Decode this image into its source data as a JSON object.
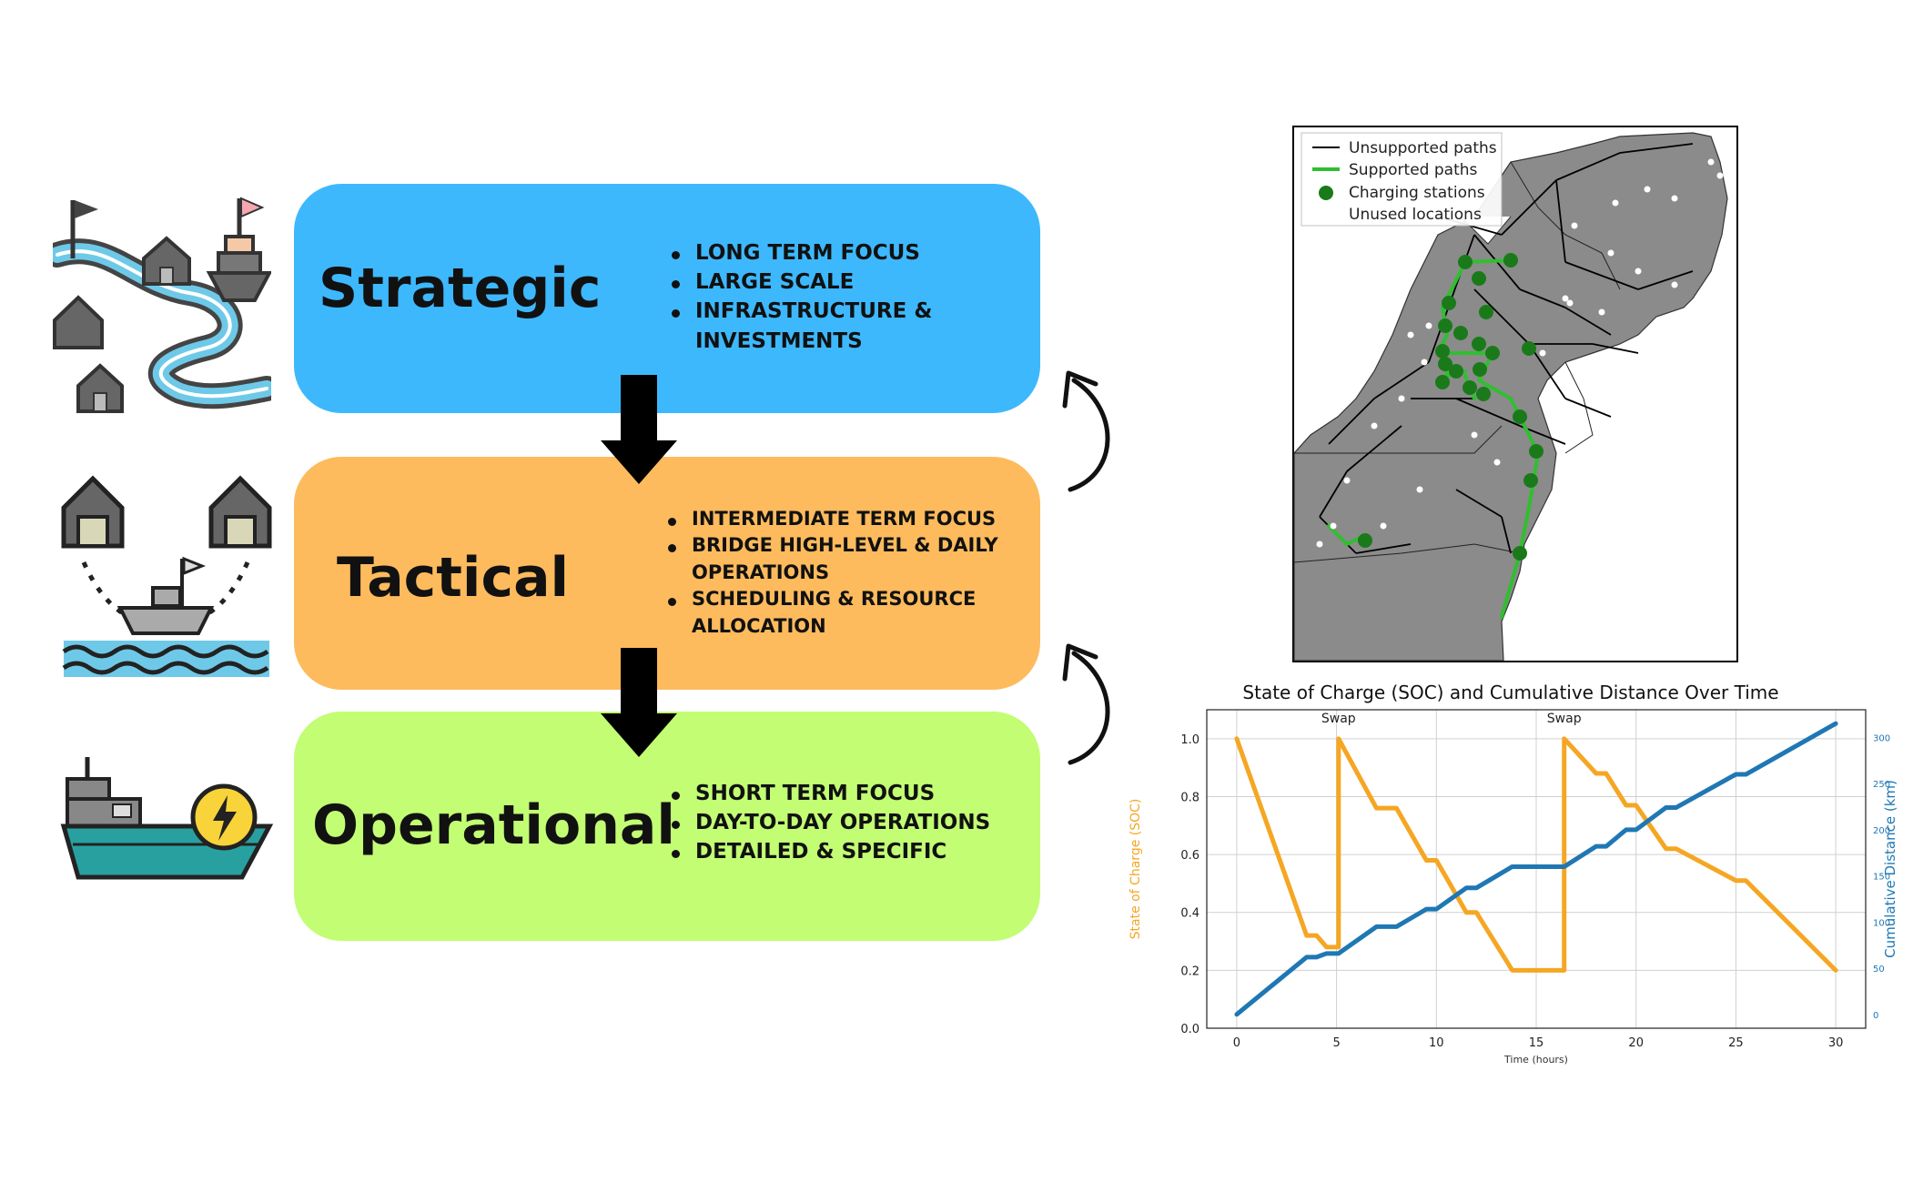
{
  "levels": [
    {
      "title": "Strategic",
      "color": "#3db8fd",
      "bullets": [
        "LONG TERM FOCUS",
        "LARGE SCALE",
        "INFRASTRUCTURE &",
        "INVESTMENTS"
      ],
      "icon": "river-town-ship-icon"
    },
    {
      "title": "Tactical",
      "color": "#fdbb5d",
      "bullets": [
        "INTERMEDIATE TERM FOCUS",
        "BRIDGE HIGH-LEVEL & DAILY",
        "OPERATIONS",
        "SCHEDULING & RESOURCE",
        "ALLOCATION"
      ],
      "icon": "ship-between-ports-icon"
    },
    {
      "title": "Operational",
      "color": "#c2fd74",
      "bullets": [
        "SHORT TERM FOCUS",
        "DAY-TO-DAY OPERATIONS",
        "DETAILED & SPECIFIC"
      ],
      "icon": "electric-ship-icon"
    }
  ],
  "map": {
    "legend": [
      "Unsupported paths",
      "Supported paths",
      "Charging stations",
      "Unused locations"
    ],
    "colors": {
      "land": "#8b8b8b",
      "supported": "#2fbf2f",
      "station": "#1a7a1a",
      "unused": "#ffffff",
      "unsupported": "#000000"
    }
  },
  "chart_data": {
    "type": "line",
    "title": "State of Charge (SOC) and Cumulative Distance Over Time",
    "xlabel": "Time (hours)",
    "ylabel": "State of Charge (SOC)",
    "y2label": "Cumulative Distance (km)",
    "xlim": [
      -1.5,
      31.5
    ],
    "ylim": [
      0.0,
      1.1
    ],
    "y2lim": [
      -15,
      330
    ],
    "xticks": [
      0,
      5,
      10,
      15,
      20,
      25,
      30
    ],
    "yticks": [
      0.0,
      0.2,
      0.4,
      0.6,
      0.8,
      1.0
    ],
    "y2ticks": [
      0,
      50,
      100,
      150,
      200,
      250,
      300
    ],
    "grid": true,
    "annotations": [
      {
        "text": "Swap",
        "x": 5.1
      },
      {
        "text": "Swap",
        "x": 16.4
      }
    ],
    "series": [
      {
        "name": "State of Charge (SOC)",
        "axis": "left",
        "color": "#f5a623",
        "x": [
          0,
          3.5,
          4,
          4.5,
          5.1,
          5.1,
          7,
          8,
          9.5,
          10,
          11.5,
          12,
          13.8,
          16.4,
          16.4,
          18,
          18.5,
          19.5,
          20,
          21.5,
          22,
          25,
          25.5,
          30
        ],
        "y": [
          1.0,
          0.32,
          0.32,
          0.28,
          0.28,
          1.0,
          0.76,
          0.76,
          0.58,
          0.58,
          0.4,
          0.4,
          0.2,
          0.2,
          1.0,
          0.88,
          0.88,
          0.77,
          0.77,
          0.62,
          0.62,
          0.51,
          0.51,
          0.2
        ]
      },
      {
        "name": "Cumulative Distance (km)",
        "axis": "right",
        "color": "#1f77b4",
        "x": [
          0,
          3.5,
          4,
          4.5,
          5.1,
          7,
          8,
          9.5,
          10,
          11.5,
          12,
          13.8,
          16.4,
          18,
          18.5,
          19.5,
          20,
          21.5,
          22,
          25,
          25.5,
          30
        ],
        "y": [
          0,
          62,
          62,
          66,
          66,
          95,
          95,
          114,
          114,
          137,
          137,
          160,
          160,
          182,
          182,
          200,
          200,
          224,
          224,
          260,
          260,
          315
        ]
      }
    ]
  }
}
